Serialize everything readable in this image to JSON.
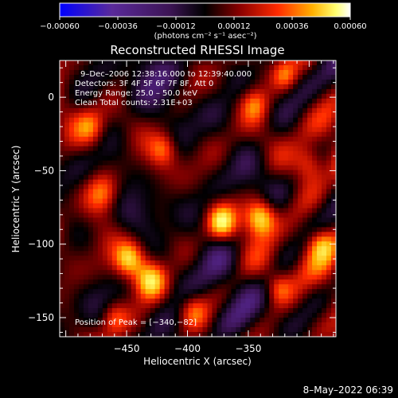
{
  "chart_data": {
    "type": "heatmap",
    "title": "Reconstructed RHESSI Image",
    "xlabel": "Heliocentric X (arcsec)",
    "ylabel": "Heliocentric Y (arcsec)",
    "xlim": [
      -505,
      -278
    ],
    "ylim": [
      -163,
      25
    ],
    "x_ticks": [
      -450,
      -400,
      -350
    ],
    "x_tick_labels": [
      "−450",
      "−400",
      "−350"
    ],
    "y_ticks": [
      0,
      -50,
      -100,
      -150
    ],
    "y_tick_labels": [
      "0",
      "−50",
      "−100",
      "−150"
    ],
    "colorbar": {
      "ticks": [
        -0.0006,
        -0.00036,
        -0.00012,
        0.00012,
        0.00036,
        0.0006
      ],
      "tick_labels": [
        "−0.00060",
        "−0.00036",
        "−0.00012",
        "0.00012",
        "0.00036",
        "0.00060"
      ],
      "range": [
        -0.0006,
        0.0006
      ],
      "unit_line": "(photons cm⁻² s⁻¹ asec⁻²)"
    },
    "annotations": [
      "9–Dec–2006 12:38:16.000 to 12:39:40.000",
      "Detectors: 3F 4F 5F 6F 7F 8F, Att 0",
      "Energy Range: 25.0 – 50.0 keV",
      "Clean     Total counts: 2.31E+03"
    ],
    "peak_label": "Position of Peak = [−340,−82]",
    "peak_position": [
      -340,
      -82
    ],
    "colormap": [
      "#0000ff",
      "#5a2a9a",
      "#3c1454",
      "#000000",
      "#8a0000",
      "#ff2a00",
      "#ffb000",
      "#ffff70",
      "#ffffff"
    ]
  },
  "footer": {
    "timestamp": "8–May–2022 06:39"
  }
}
